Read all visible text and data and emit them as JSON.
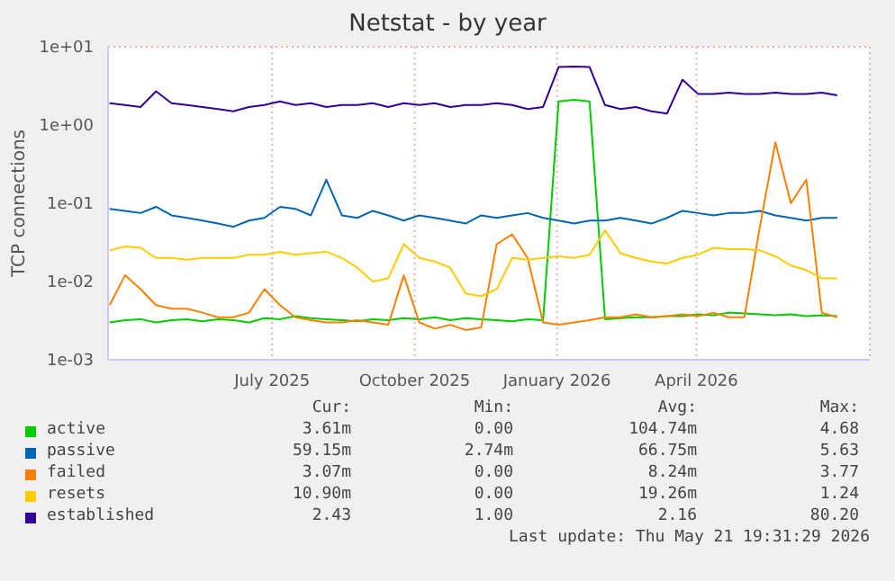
{
  "chart_data": {
    "type": "line",
    "title": "Netstat - by year",
    "ylabel": "TCP connections",
    "log": "y",
    "grid": true,
    "legend": "bottom",
    "marker": "none",
    "line_style": "solid",
    "x": [
      "2025-03-18",
      "2025-03-28",
      "2025-04-07",
      "2025-04-17",
      "2025-04-27",
      "2025-05-07",
      "2025-05-17",
      "2025-05-27",
      "2025-06-06",
      "2025-06-16",
      "2025-06-26",
      "2025-07-06",
      "2025-07-16",
      "2025-07-26",
      "2025-08-05",
      "2025-08-15",
      "2025-08-25",
      "2025-09-04",
      "2025-09-14",
      "2025-09-24",
      "2025-10-04",
      "2025-10-14",
      "2025-10-24",
      "2025-11-03",
      "2025-11-13",
      "2025-11-23",
      "2025-12-03",
      "2025-12-13",
      "2025-12-23",
      "2026-01-02",
      "2026-01-12",
      "2026-01-22",
      "2026-02-01",
      "2026-02-11",
      "2026-02-21",
      "2026-03-03",
      "2026-03-13",
      "2026-03-23",
      "2026-04-02",
      "2026-04-12",
      "2026-04-22",
      "2026-05-02",
      "2026-05-12",
      "2026-05-22",
      "2026-06-01",
      "2026-06-11",
      "2026-06-21",
      "2026-07-01"
    ],
    "xlim": [
      "2025-03-17",
      "2026-07-22"
    ],
    "xticks": [
      {
        "value": "2025-07-01",
        "label": "July 2025"
      },
      {
        "value": "2025-10-01",
        "label": "October 2025"
      },
      {
        "value": "2026-01-01",
        "label": "January 2026"
      },
      {
        "value": "2026-04-01",
        "label": "April 2026"
      }
    ],
    "ylim": [
      0.001,
      10
    ],
    "yticks": [
      {
        "value": 0.001,
        "label": "1e-03"
      },
      {
        "value": 0.01,
        "label": "1e-02"
      },
      {
        "value": 0.1,
        "label": "1e-01"
      },
      {
        "value": 1,
        "label": "1e+00"
      },
      {
        "value": 10,
        "label": "1e+01"
      }
    ],
    "series": [
      {
        "name": "active",
        "color": "#00cc00",
        "values": [
          0.003,
          0.0032,
          0.0033,
          0.003,
          0.0032,
          0.0033,
          0.0031,
          0.0033,
          0.0032,
          0.003,
          0.0034,
          0.0033,
          0.0036,
          0.0034,
          0.0033,
          0.0032,
          0.0031,
          0.0033,
          0.0032,
          0.0034,
          0.0033,
          0.0035,
          0.0032,
          0.0034,
          0.0033,
          0.0032,
          0.0031,
          0.0033,
          0.0032,
          2.0,
          2.1,
          2.0,
          0.0033,
          0.0034,
          0.0035,
          0.0035,
          0.0036,
          0.0036,
          0.0038,
          0.0037,
          0.004,
          0.0039,
          0.0038,
          0.0037,
          0.0038,
          0.0036,
          0.0037,
          0.0036
        ]
      },
      {
        "name": "passive",
        "color": "#0066b3",
        "values": [
          0.085,
          0.08,
          0.075,
          0.09,
          0.07,
          0.065,
          0.06,
          0.055,
          0.05,
          0.06,
          0.065,
          0.09,
          0.085,
          0.07,
          0.2,
          0.07,
          0.065,
          0.08,
          0.07,
          0.06,
          0.07,
          0.065,
          0.06,
          0.055,
          0.07,
          0.065,
          0.07,
          0.075,
          0.065,
          0.06,
          0.055,
          0.06,
          0.06,
          0.065,
          0.06,
          0.055,
          0.065,
          0.08,
          0.075,
          0.07,
          0.075,
          0.075,
          0.08,
          0.07,
          0.065,
          0.06,
          0.065,
          0.065
        ]
      },
      {
        "name": "failed",
        "color": "#ff8000",
        "values": [
          0.005,
          0.012,
          0.008,
          0.005,
          0.0045,
          0.0045,
          0.004,
          0.0035,
          0.0035,
          0.004,
          0.008,
          0.005,
          0.0035,
          0.0032,
          0.003,
          0.003,
          0.0032,
          0.003,
          0.0028,
          0.012,
          0.003,
          0.0025,
          0.0028,
          0.0024,
          0.0026,
          0.03,
          0.04,
          0.02,
          0.003,
          0.0028,
          0.003,
          0.0032,
          0.0035,
          0.0035,
          0.0038,
          0.0035,
          0.0036,
          0.0038,
          0.0036,
          0.004,
          0.0035,
          0.0035,
          0.05,
          0.6,
          0.1,
          0.2,
          0.004,
          0.0035
        ]
      },
      {
        "name": "resets",
        "color": "#ffcc00",
        "values": [
          0.025,
          0.028,
          0.027,
          0.02,
          0.02,
          0.019,
          0.02,
          0.02,
          0.02,
          0.022,
          0.022,
          0.024,
          0.022,
          0.023,
          0.024,
          0.02,
          0.015,
          0.01,
          0.011,
          0.03,
          0.02,
          0.018,
          0.015,
          0.007,
          0.0065,
          0.008,
          0.02,
          0.019,
          0.02,
          0.021,
          0.02,
          0.022,
          0.045,
          0.023,
          0.02,
          0.018,
          0.017,
          0.02,
          0.022,
          0.027,
          0.026,
          0.026,
          0.025,
          0.021,
          0.016,
          0.014,
          0.011,
          0.011
        ]
      },
      {
        "name": "established",
        "color": "#330099",
        "values": [
          1.9,
          1.8,
          1.7,
          2.7,
          1.9,
          1.8,
          1.7,
          1.6,
          1.5,
          1.7,
          1.8,
          2.0,
          1.8,
          1.9,
          1.7,
          1.8,
          1.8,
          1.9,
          1.7,
          1.9,
          1.8,
          1.9,
          1.7,
          1.8,
          1.8,
          1.9,
          1.8,
          1.6,
          1.7,
          5.5,
          5.6,
          5.5,
          1.8,
          1.6,
          1.7,
          1.5,
          1.4,
          3.8,
          2.5,
          2.5,
          2.6,
          2.5,
          2.5,
          2.6,
          2.5,
          2.5,
          2.6,
          2.4
        ]
      }
    ],
    "annotations": [
      "Cur:",
      "Min:",
      "Avg:",
      "Max:",
      "3.61m",
      "0.00",
      "104.74m",
      "4.68",
      "59.15m",
      "2.74m",
      "66.75m",
      "5.63",
      "3.07m",
      "0.00",
      "8.24m",
      "3.77",
      "10.90m",
      "0.00",
      "19.26m",
      "1.24",
      "2.43",
      "1.00",
      "2.16",
      "80.20",
      "Last update: Thu May 21 19:31:29 2026"
    ]
  }
}
